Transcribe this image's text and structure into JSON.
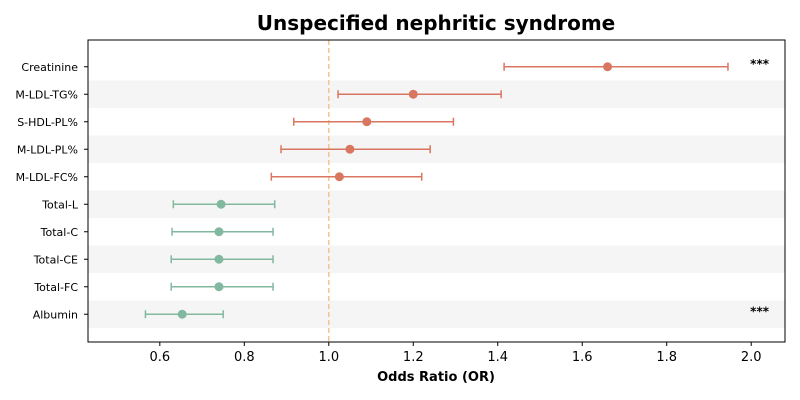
{
  "chart_data": {
    "type": "forest",
    "title": "Unspecified nephritic syndrome",
    "xlabel": "Odds Ratio (OR)",
    "xlim": [
      0.43,
      2.08
    ],
    "xticks": [
      0.6,
      0.8,
      1.0,
      1.2,
      1.4,
      1.6,
      1.8,
      2.0
    ],
    "xtick_labels": [
      "0.6",
      "0.8",
      "1.0",
      "1.2",
      "1.4",
      "1.6",
      "1.8",
      "2.0"
    ],
    "reference_line": 1.0,
    "grid": false,
    "colors": {
      "positive": "#d9765f",
      "negative": "#82b89f",
      "reference": "#f5c48c",
      "band": "#f5f5f5"
    },
    "rows": [
      {
        "label": "Creatinine",
        "or": 1.66,
        "lower": 1.415,
        "upper": 1.945,
        "sig": "***"
      },
      {
        "label": "M-LDL-TG%",
        "or": 1.2,
        "lower": 1.022,
        "upper": 1.408,
        "sig": ""
      },
      {
        "label": "S-HDL-PL%",
        "or": 1.09,
        "lower": 0.917,
        "upper": 1.295,
        "sig": ""
      },
      {
        "label": "M-LDL-PL%",
        "or": 1.05,
        "lower": 0.887,
        "upper": 1.24,
        "sig": ""
      },
      {
        "label": "M-LDL-FC%",
        "or": 1.025,
        "lower": 0.864,
        "upper": 1.22,
        "sig": ""
      },
      {
        "label": "Total-L",
        "or": 0.745,
        "lower": 0.632,
        "upper": 0.872,
        "sig": ""
      },
      {
        "label": "Total-C",
        "or": 0.74,
        "lower": 0.629,
        "upper": 0.868,
        "sig": ""
      },
      {
        "label": "Total-CE",
        "or": 0.74,
        "lower": 0.627,
        "upper": 0.868,
        "sig": ""
      },
      {
        "label": "Total-FC",
        "or": 0.74,
        "lower": 0.627,
        "upper": 0.868,
        "sig": ""
      },
      {
        "label": "Albumin",
        "or": 0.653,
        "lower": 0.566,
        "upper": 0.75,
        "sig": "***"
      }
    ]
  }
}
